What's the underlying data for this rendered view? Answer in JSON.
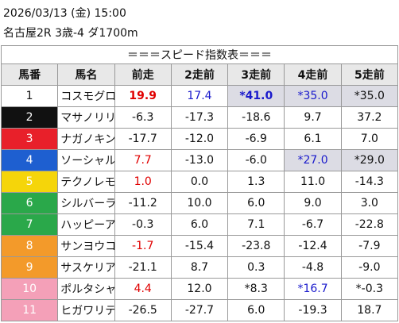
{
  "header": {
    "datetime": "2026/03/13 (金) 15:00",
    "race": "名古屋2R 3歳-4 ダ1700m"
  },
  "table": {
    "title": "＝＝＝スピード指数表＝＝＝",
    "columns": [
      "馬番",
      "馬名",
      "前走",
      "2走前",
      "3走前",
      "4走前",
      "5走前"
    ],
    "rows": [
      [
        "1",
        "コスモグロボーサ",
        "19.9",
        "17.4",
        "*41.0",
        "*35.0",
        "*35.0"
      ],
      [
        "2",
        "マサノリリー",
        "-6.3",
        "-17.3",
        "-18.6",
        "9.7",
        "37.2"
      ],
      [
        "3",
        "ナガノキングダイヤ",
        "-17.7",
        "-12.0",
        "-6.9",
        "6.1",
        "7.0"
      ],
      [
        "4",
        "ソーシャルコード",
        "7.7",
        "-13.0",
        "-6.0",
        "*27.0",
        "*29.0"
      ],
      [
        "5",
        "テクノレモン",
        "1.0",
        "0.0",
        "1.3",
        "11.0",
        "-14.3"
      ],
      [
        "6",
        "シルバーライダー",
        "-11.2",
        "10.0",
        "6.0",
        "9.0",
        "3.0"
      ],
      [
        "7",
        "ハッピーアシュレイ",
        "-0.3",
        "6.0",
        "7.1",
        "-6.7",
        "-22.8"
      ],
      [
        "8",
        "サンヨウコイノボリ",
        "-1.7",
        "-15.4",
        "-23.8",
        "-12.4",
        "-7.9"
      ],
      [
        "9",
        "サスケリアン",
        "-21.1",
        "8.7",
        "0.3",
        "-4.8",
        "-9.0"
      ],
      [
        "10",
        "ポルタシャーンス",
        "4.4",
        "12.0",
        "*8.3",
        "*16.7",
        "*-0.3"
      ],
      [
        "11",
        "ヒガワリテイショク",
        "-26.5",
        "-27.7",
        "6.0",
        "-19.3",
        "18.7"
      ]
    ]
  }
}
